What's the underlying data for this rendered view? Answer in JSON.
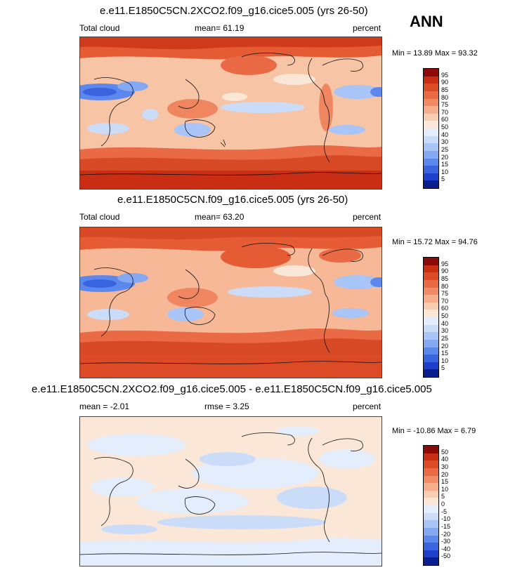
{
  "season": "ANN",
  "palette": {
    "sequential": [
      "#0a1f8f",
      "#1e3fcc",
      "#3a63e0",
      "#5c87ec",
      "#85a8f2",
      "#a9c4f7",
      "#cbdcf9",
      "#e4edfb",
      "#fbe7d7",
      "#f9cdb2",
      "#f6ad8c",
      "#f08b66",
      "#e96a44",
      "#dc4a26",
      "#c92e14",
      "#8c0b08"
    ],
    "difference": [
      "#0a1f8f",
      "#1e3fcc",
      "#3a63e0",
      "#5c87ec",
      "#85a8f2",
      "#a9c4f7",
      "#cbdcf9",
      "#e4edfb",
      "#fbe7d7",
      "#f9cdb2",
      "#f6ad8c",
      "#f08b66",
      "#e96a44",
      "#dc4a26",
      "#c92e14",
      "#8c0b08"
    ]
  },
  "panels": [
    {
      "title": "e.e11.E1850C5CN.2XCO2.f09_g16.cice5.005 (yrs 26-50)",
      "left_label": "Total cloud",
      "stat_label": "mean=  61.19",
      "units": "percent",
      "minmax": "Min = 13.89 Max = 93.32",
      "colorbar_ticks": [
        "95",
        "90",
        "85",
        "80",
        "75",
        "70",
        "60",
        "50",
        "40",
        "30",
        "25",
        "20",
        "15",
        "10",
        "5"
      ]
    },
    {
      "title": "e.e11.E1850C5CN.f09_g16.cice5.005 (yrs 26-50)",
      "left_label": "Total cloud",
      "stat_label": "mean=  63.20",
      "units": "percent",
      "minmax": "Min = 15.72 Max = 94.76",
      "colorbar_ticks": [
        "95",
        "90",
        "85",
        "80",
        "75",
        "70",
        "60",
        "50",
        "40",
        "30",
        "25",
        "20",
        "15",
        "10",
        "5"
      ]
    },
    {
      "title": "e.e11.E1850C5CN.2XCO2.f09_g16.cice5.005 - e.e11.E1850C5CN.f09_g16.cice5.005",
      "left_label": "mean =  -2.01",
      "stat_label": "rmse =  3.25",
      "units": "percent",
      "minmax": "Min = -10.86 Max =  6.79",
      "colorbar_ticks": [
        "50",
        "40",
        "30",
        "20",
        "15",
        "10",
        "5",
        "0",
        "-5",
        "-10",
        "-15",
        "-20",
        "-30",
        "-40",
        "-50"
      ]
    }
  ],
  "chart_data": [
    {
      "type": "heatmap",
      "title": "e.e11.E1850C5CN.2XCO2.f09_g16.cice5.005 (yrs 26-50)",
      "variable": "Total cloud",
      "units": "percent",
      "mean": 61.19,
      "min": 13.89,
      "max": 93.32,
      "contour_levels": [
        5,
        10,
        15,
        20,
        25,
        30,
        40,
        50,
        60,
        70,
        75,
        80,
        85,
        90,
        95
      ]
    },
    {
      "type": "heatmap",
      "title": "e.e11.E1850C5CN.f09_g16.cice5.005 (yrs 26-50)",
      "variable": "Total cloud",
      "units": "percent",
      "mean": 63.2,
      "min": 15.72,
      "max": 94.76,
      "contour_levels": [
        5,
        10,
        15,
        20,
        25,
        30,
        40,
        50,
        60,
        70,
        75,
        80,
        85,
        90,
        95
      ]
    },
    {
      "type": "heatmap",
      "title": "e.e11.E1850C5CN.2XCO2.f09_g16.cice5.005 - e.e11.E1850C5CN.f09_g16.cice5.005",
      "units": "percent",
      "mean": -2.01,
      "rmse": 3.25,
      "min": -10.86,
      "max": 6.79,
      "contour_levels": [
        -50,
        -40,
        -30,
        -20,
        -15,
        -10,
        -5,
        0,
        5,
        10,
        15,
        20,
        30,
        40,
        50
      ]
    }
  ]
}
